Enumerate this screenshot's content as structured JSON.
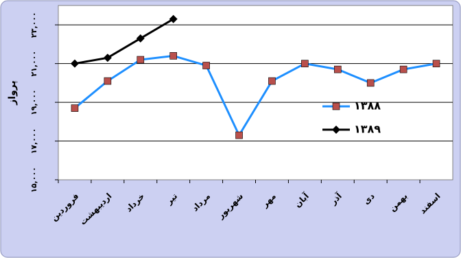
{
  "chart_data": {
    "type": "line",
    "y_label": "پرواز",
    "categories": [
      "فروردین",
      "اردیبهشت",
      "خرداد",
      "تیر",
      "مرداد",
      "شهریور",
      "مهر",
      "آبان",
      "آذر",
      "دی",
      "بهمن",
      "اسفند"
    ],
    "series": [
      {
        "name": "۱۳۸۸",
        "color": "#1e8fff",
        "marker_color": "#b9504c",
        "marker": "square",
        "values": [
          18700,
          20100,
          21200,
          21400,
          20900,
          17300,
          20100,
          21000,
          20700,
          20000,
          20700,
          21000
        ]
      },
      {
        "name": "۱۳۸۹",
        "color": "#000000",
        "marker_color": "#000000",
        "marker": "diamond",
        "values": [
          21000,
          21300,
          22300,
          23300,
          null,
          null,
          null,
          null,
          null,
          null,
          null,
          null
        ]
      }
    ],
    "ylim": [
      15000,
      24000
    ],
    "yticks": [
      {
        "value": 15000,
        "label": "۱۵,۰۰۰"
      },
      {
        "value": 17000,
        "label": "۱۷,۰۰۰"
      },
      {
        "value": 19000,
        "label": "۱۹,۰۰۰"
      },
      {
        "value": 21000,
        "label": "۲۱,۰۰۰"
      },
      {
        "value": 23000,
        "label": "۲۳,۰۰۰"
      }
    ],
    "grid": true,
    "legend": "right"
  }
}
